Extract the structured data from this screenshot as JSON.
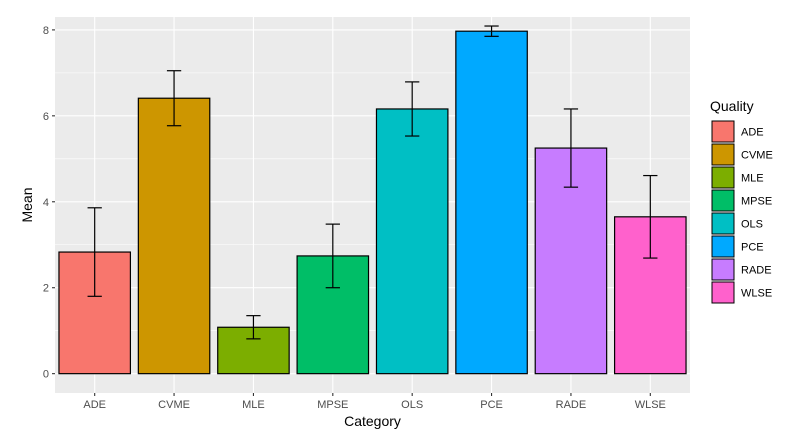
{
  "chart_data": {
    "type": "bar",
    "xlabel": "Category",
    "ylabel": "Mean",
    "ylim": [
      -0.45,
      8.3
    ],
    "yticks": [
      0,
      2,
      4,
      6,
      8
    ],
    "grid": true,
    "legend_title": "Quality",
    "legend_position": "right",
    "categories": [
      "ADE",
      "CVME",
      "MLE",
      "MPSE",
      "OLS",
      "PCE",
      "RADE",
      "WLSE"
    ],
    "values": [
      2.83,
      6.41,
      1.08,
      2.74,
      6.16,
      7.97,
      5.25,
      3.65
    ],
    "error_low": [
      1.8,
      5.77,
      0.81,
      2.0,
      5.53,
      7.85,
      4.34,
      2.69
    ],
    "error_high": [
      3.86,
      7.05,
      1.35,
      3.48,
      6.79,
      8.09,
      6.16,
      4.61
    ],
    "colors": [
      "#F8766D",
      "#CD9600",
      "#7CAE00",
      "#00BE67",
      "#00BFC4",
      "#00A9FF",
      "#C77CFF",
      "#FF61CC"
    ]
  }
}
